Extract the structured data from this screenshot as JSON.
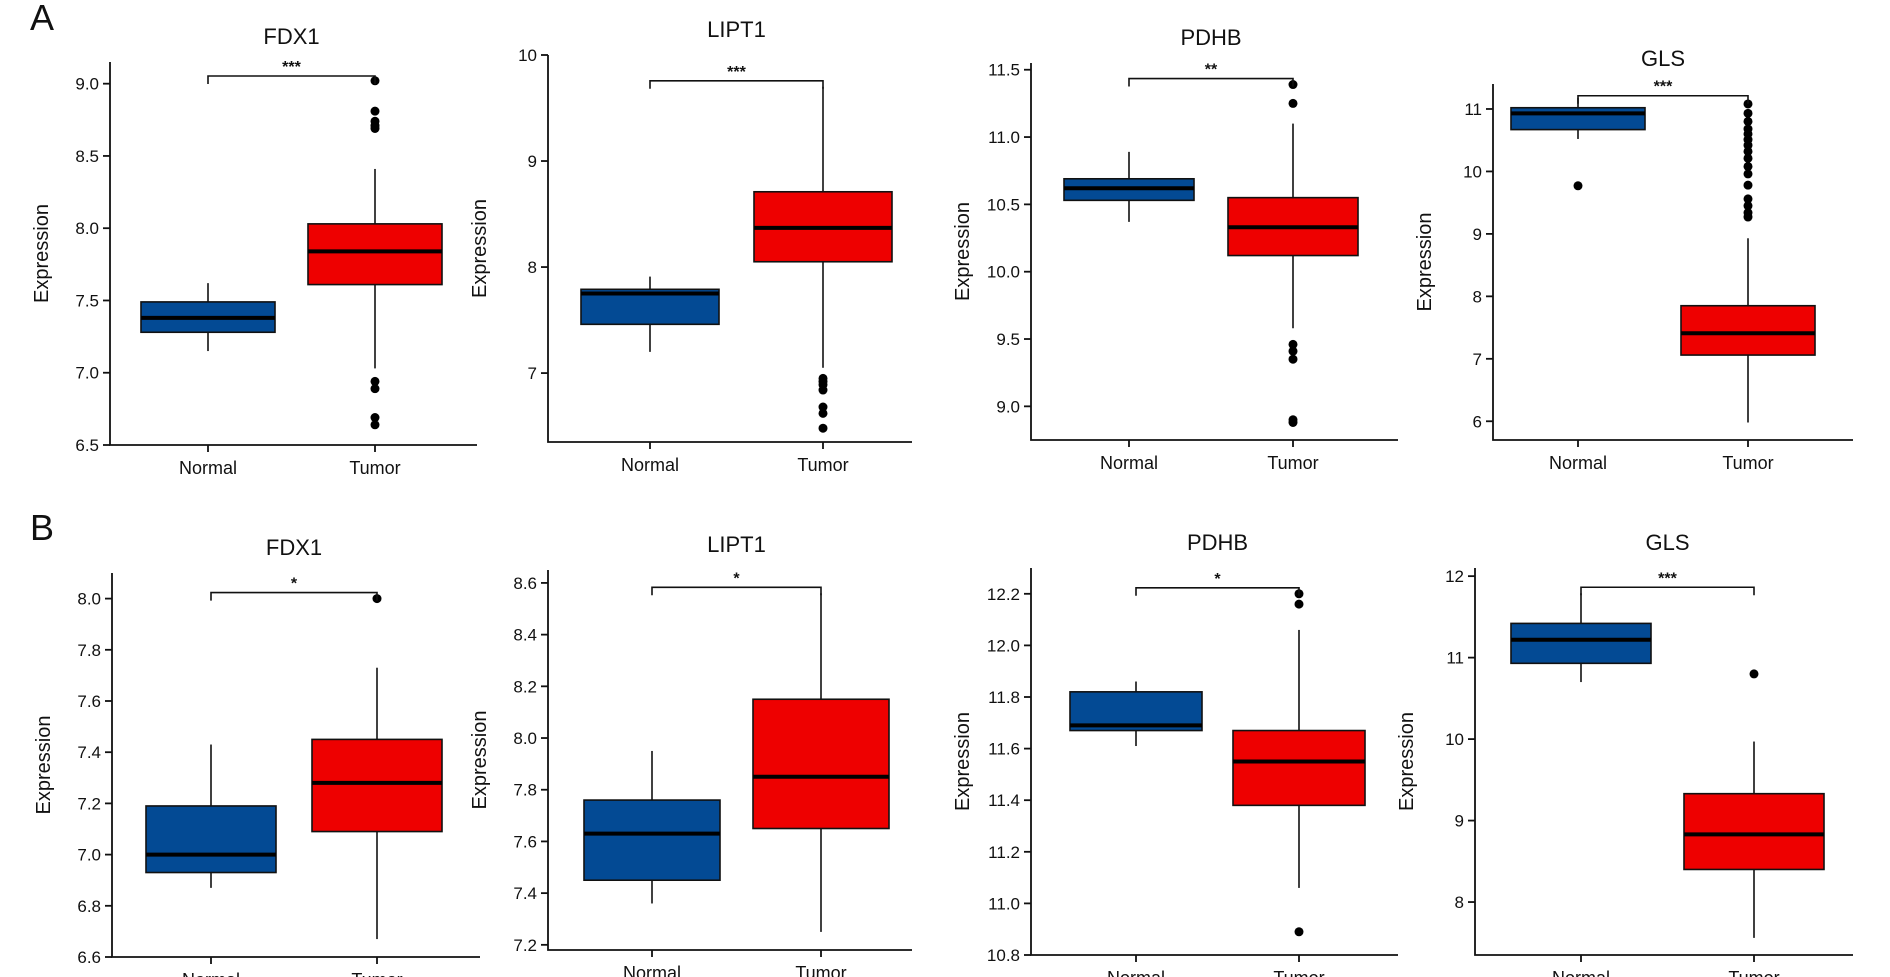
{
  "colors": {
    "normal": "#034a94",
    "tumor": "#ee0000",
    "axis": "#111111"
  },
  "panel_letters": [
    "A",
    "B"
  ],
  "chart_data": [
    {
      "type": "box",
      "panel": "A",
      "title": "FDX1",
      "xlabel": "",
      "ylabel": "Expression",
      "categories": [
        "Normal",
        "Tumor"
      ],
      "ylim": [
        6.5,
        9.15
      ],
      "yticks": [
        6.5,
        7.0,
        7.5,
        8.0,
        8.5,
        9.0
      ],
      "tick_decimals": 1,
      "significance": "***",
      "boxes": [
        {
          "group": "Normal",
          "whislo": 7.15,
          "q1": 7.28,
          "median": 7.38,
          "q3": 7.49,
          "whishi": 7.62,
          "fliers": []
        },
        {
          "group": "Tumor",
          "whislo": 7.03,
          "q1": 7.61,
          "median": 7.84,
          "q3": 8.03,
          "whishi": 8.41,
          "fliers": [
            6.64,
            6.69,
            6.89,
            6.94,
            8.69,
            8.71,
            8.74,
            8.81,
            9.02
          ]
        }
      ]
    },
    {
      "type": "box",
      "panel": "A",
      "title": "LIPT1",
      "xlabel": "",
      "ylabel": "Expression",
      "categories": [
        "Normal",
        "Tumor"
      ],
      "ylim": [
        6.35,
        10.0
      ],
      "yticks": [
        7,
        8,
        9,
        10
      ],
      "tick_decimals": 0,
      "significance": "***",
      "boxes": [
        {
          "group": "Normal",
          "whislo": 7.2,
          "q1": 7.46,
          "median": 7.75,
          "q3": 7.79,
          "whishi": 7.91,
          "fliers": []
        },
        {
          "group": "Tumor",
          "whislo": 7.05,
          "q1": 8.05,
          "median": 8.37,
          "q3": 8.71,
          "whishi": 9.7,
          "fliers": [
            6.48,
            6.62,
            6.68,
            6.84,
            6.89,
            6.92,
            6.95
          ]
        }
      ]
    },
    {
      "type": "box",
      "panel": "A",
      "title": "PDHB",
      "xlabel": "",
      "ylabel": "Expression",
      "categories": [
        "Normal",
        "Tumor"
      ],
      "ylim": [
        8.75,
        11.55
      ],
      "yticks": [
        9.0,
        9.5,
        10.0,
        10.5,
        11.0,
        11.5
      ],
      "tick_decimals": 1,
      "significance": "**",
      "boxes": [
        {
          "group": "Normal",
          "whislo": 10.37,
          "q1": 10.53,
          "median": 10.62,
          "q3": 10.69,
          "whishi": 10.89,
          "fliers": []
        },
        {
          "group": "Tumor",
          "whislo": 9.58,
          "q1": 10.12,
          "median": 10.33,
          "q3": 10.55,
          "whishi": 11.1,
          "fliers": [
            8.88,
            8.9,
            9.35,
            9.41,
            9.46,
            11.25,
            11.39
          ]
        }
      ]
    },
    {
      "type": "box",
      "panel": "A",
      "title": "GLS",
      "xlabel": "",
      "ylabel": "Expression",
      "categories": [
        "Normal",
        "Tumor"
      ],
      "ylim": [
        5.7,
        11.4
      ],
      "yticks": [
        6,
        7,
        8,
        9,
        10,
        11
      ],
      "tick_decimals": 0,
      "significance": "***",
      "boxes": [
        {
          "group": "Normal",
          "whislo": 10.52,
          "q1": 10.67,
          "median": 10.93,
          "q3": 11.02,
          "whishi": 11.18,
          "fliers": [
            9.77
          ]
        },
        {
          "group": "Tumor",
          "whislo": 5.98,
          "q1": 7.06,
          "median": 7.41,
          "q3": 7.85,
          "whishi": 8.93,
          "fliers": [
            9.27,
            9.34,
            9.45,
            9.56,
            9.78,
            9.96,
            10.08,
            10.21,
            10.32,
            10.42,
            10.51,
            10.6,
            10.68,
            10.8,
            10.93,
            11.08
          ]
        }
      ]
    },
    {
      "type": "box",
      "panel": "B",
      "title": "FDX1",
      "xlabel": "",
      "ylabel": "Expression",
      "categories": [
        "Normal",
        "Tumor"
      ],
      "ylim": [
        6.6,
        8.1
      ],
      "yticks": [
        6.6,
        6.8,
        7.0,
        7.2,
        7.4,
        7.6,
        7.8,
        8.0
      ],
      "tick_decimals": 1,
      "significance": "*",
      "boxes": [
        {
          "group": "Normal",
          "whislo": 6.87,
          "q1": 6.93,
          "median": 7.0,
          "q3": 7.19,
          "whishi": 7.43,
          "fliers": []
        },
        {
          "group": "Tumor",
          "whislo": 6.67,
          "q1": 7.09,
          "median": 7.28,
          "q3": 7.45,
          "whishi": 7.73,
          "fliers": [
            8.0
          ]
        }
      ]
    },
    {
      "type": "box",
      "panel": "B",
      "title": "LIPT1",
      "xlabel": "",
      "ylabel": "Expression",
      "categories": [
        "Normal",
        "Tumor"
      ],
      "ylim": [
        7.18,
        8.65
      ],
      "yticks": [
        7.2,
        7.4,
        7.6,
        7.8,
        8.0,
        8.2,
        8.4,
        8.6
      ],
      "tick_decimals": 1,
      "significance": "*",
      "boxes": [
        {
          "group": "Normal",
          "whislo": 7.36,
          "q1": 7.45,
          "median": 7.63,
          "q3": 7.76,
          "whishi": 7.95,
          "fliers": []
        },
        {
          "group": "Tumor",
          "whislo": 7.25,
          "q1": 7.65,
          "median": 7.85,
          "q3": 8.15,
          "whishi": 8.56,
          "fliers": []
        }
      ]
    },
    {
      "type": "box",
      "panel": "B",
      "title": "PDHB",
      "xlabel": "",
      "ylabel": "Expression",
      "categories": [
        "Normal",
        "Tumor"
      ],
      "ylim": [
        10.8,
        12.3
      ],
      "yticks": [
        10.8,
        11.0,
        11.2,
        11.4,
        11.6,
        11.8,
        12.0,
        12.2
      ],
      "tick_decimals": 1,
      "significance": "*",
      "boxes": [
        {
          "group": "Normal",
          "whislo": 11.61,
          "q1": 11.67,
          "median": 11.69,
          "q3": 11.82,
          "whishi": 11.86,
          "fliers": []
        },
        {
          "group": "Tumor",
          "whislo": 11.06,
          "q1": 11.38,
          "median": 11.55,
          "q3": 11.67,
          "whishi": 12.06,
          "fliers": [
            10.89,
            12.16,
            12.2
          ]
        }
      ]
    },
    {
      "type": "box",
      "panel": "B",
      "title": "GLS",
      "xlabel": "",
      "ylabel": "Expression",
      "categories": [
        "Normal",
        "Tumor"
      ],
      "ylim": [
        7.35,
        12.1
      ],
      "yticks": [
        8,
        9,
        10,
        11,
        12
      ],
      "tick_decimals": 0,
      "significance": "***",
      "boxes": [
        {
          "group": "Normal",
          "whislo": 10.7,
          "q1": 10.93,
          "median": 11.22,
          "q3": 11.42,
          "whishi": 11.79,
          "fliers": []
        },
        {
          "group": "Tumor",
          "whislo": 7.56,
          "q1": 8.4,
          "median": 8.83,
          "q3": 9.33,
          "whishi": 9.97,
          "fliers": [
            10.8
          ]
        }
      ]
    }
  ]
}
